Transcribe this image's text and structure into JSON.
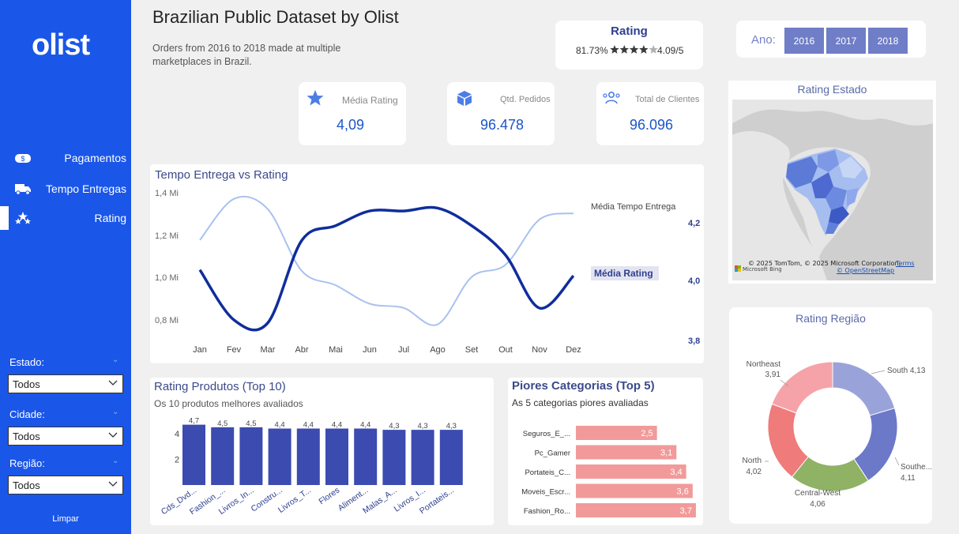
{
  "sidebar": {
    "logo": "olist",
    "nav": [
      {
        "label": "Pagamentos",
        "icon": "dollar-icon"
      },
      {
        "label": "Tempo Entregas",
        "icon": "truck-icon"
      },
      {
        "label": "Rating",
        "icon": "stars-icon",
        "active": true
      }
    ],
    "filters": [
      {
        "label": "Estado:",
        "value": "Todos"
      },
      {
        "label": "Cidade:",
        "value": "Todos"
      },
      {
        "label": "Região:",
        "value": "Todos"
      }
    ],
    "clear": "Limpar"
  },
  "header": {
    "title": "Brazilian Public Dataset by Olist",
    "subtitle": "Orders from 2016 to 2018 made at multiple marketplaces in Brazil."
  },
  "rating_card": {
    "title": "Rating",
    "percent": "81.73%",
    "score": "4.09/5",
    "stars_filled": 4,
    "stars_total": 5
  },
  "year_filter": {
    "label": "Ano:",
    "years": [
      "2016",
      "2017",
      "2018"
    ]
  },
  "kpis": [
    {
      "label": "Média Rating",
      "value": "4,09",
      "icon": "star-icon"
    },
    {
      "label": "Qtd. Pedidos",
      "value": "96.478",
      "icon": "box-icon"
    },
    {
      "label": "Total de Clientes",
      "value": "96.096",
      "icon": "customers-icon"
    }
  ],
  "map": {
    "title": "Rating Estado",
    "copyright": "© 2025 TomTom, © 2025 Microsoft Corporation,",
    "terms": "Terms",
    "osm": "© OpenStreetMap",
    "brand": "Microsoft Bing"
  },
  "chart_data": [
    {
      "type": "line",
      "title": "Tempo Entrega vs Rating",
      "categories": [
        "Jan",
        "Fev",
        "Mar",
        "Abr",
        "Mai",
        "Jun",
        "Jul",
        "Ago",
        "Set",
        "Out",
        "Nov",
        "Dez"
      ],
      "y_left_ticks": [
        "1,4 Mi",
        "1,2 Mi",
        "1,0 Mi",
        "0,8 Mi"
      ],
      "y_right_ticks": [
        "4,2",
        "4,0",
        "3,8"
      ],
      "series": [
        {
          "name": "Média Tempo Entrega",
          "axis": "left",
          "color": "#a9c1ee",
          "values": [
            1.2,
            1.4,
            1.35,
            1.05,
            0.98,
            0.89,
            0.87,
            0.79,
            1.02,
            1.08,
            1.3,
            1.33
          ]
        },
        {
          "name": "Média Rating",
          "axis": "right",
          "color": "#0f2d9c",
          "values": [
            4.04,
            3.87,
            3.86,
            4.14,
            4.19,
            4.24,
            4.24,
            4.25,
            4.19,
            4.09,
            3.91,
            4.02
          ]
        }
      ],
      "ylim_left": [
        0.7,
        1.43
      ],
      "ylim_right": [
        3.8,
        4.3
      ]
    },
    {
      "type": "bar",
      "title": "Rating Produtos (Top 10)",
      "subtitle": "Os 10 produtos melhores avaliados",
      "categories": [
        "Cds_Dvd...",
        "Fashion_...",
        "Livros_In...",
        "Constru...",
        "Livros_T...",
        "Flores",
        "Aliment...",
        "Malas_A...",
        "Livros_I...",
        "Portateis..."
      ],
      "values": [
        4.7,
        4.5,
        4.5,
        4.4,
        4.4,
        4.4,
        4.4,
        4.3,
        4.3,
        4.3
      ],
      "labels": [
        "4,7",
        "4,5",
        "4,5",
        "4,4",
        "4,4",
        "4,4",
        "4,4",
        "4,3",
        "4,3",
        "4,3"
      ],
      "y_ticks": [
        "4",
        "2"
      ],
      "ylim": [
        0,
        4.8
      ],
      "color": "#3b4bb0"
    },
    {
      "type": "bar",
      "orientation": "horizontal",
      "title": "Piores Categorias (Top 5)",
      "subtitle": "As 5 categorias piores avaliadas",
      "categories": [
        "Seguros_E_...",
        "Pc_Gamer",
        "Portateis_C...",
        "Moveis_Escr...",
        "Fashion_Ro..."
      ],
      "values": [
        2.5,
        3.1,
        3.4,
        3.6,
        3.7
      ],
      "labels": [
        "2,5",
        "3,1",
        "3,4",
        "3,6",
        "3,7"
      ],
      "xlim": [
        0,
        3.75
      ],
      "color": "#f29a9a"
    },
    {
      "type": "pie",
      "title": "Rating Região",
      "slices": [
        {
          "name": "South",
          "value": 4.13,
          "label": "South 4,13",
          "color": "#9aa3d9"
        },
        {
          "name": "Southeast",
          "value": 4.11,
          "label": "Southe...",
          "label2": "4,11",
          "color": "#6c78c8"
        },
        {
          "name": "Central-West",
          "value": 4.06,
          "label": "Central-West",
          "label2": "4,06",
          "color": "#8fb265"
        },
        {
          "name": "North",
          "value": 4.02,
          "label": "North",
          "label2": "4,02",
          "color": "#ef7b7b"
        },
        {
          "name": "Northeast",
          "value": 3.91,
          "label": "Northeast",
          "label2": "3,91",
          "color": "#f5a3a8"
        }
      ]
    }
  ]
}
